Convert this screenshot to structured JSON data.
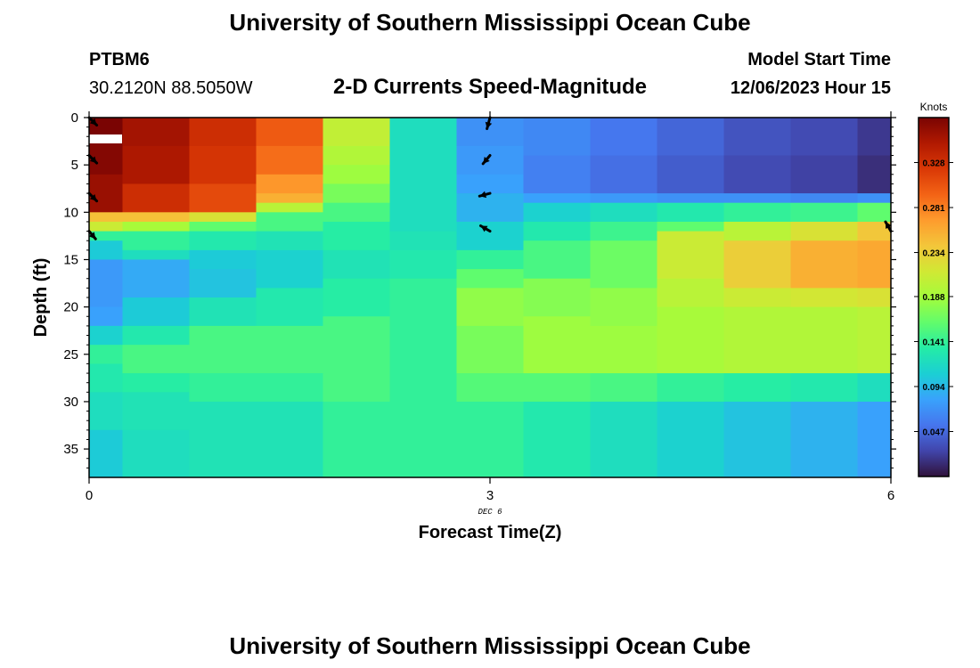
{
  "header": {
    "title": "University of Southern Mississippi Ocean Cube",
    "station": "PTBM6",
    "coords": "30.2120N  88.5050W",
    "subtitle": "2-D Currents Speed-Magnitude",
    "model_label": "Model Start Time",
    "model_time": "12/06/2023 Hour 15"
  },
  "footer": {
    "title": "University of Southern Mississippi Ocean Cube"
  },
  "chart_data": {
    "type": "heatmap",
    "title": "2-D Currents Speed-Magnitude",
    "xlabel": "Forecast Time(Z)",
    "ylabel": "Depth (ft)",
    "x_ticks": [
      "0",
      "3",
      "6"
    ],
    "x_tick_values": [
      0,
      3,
      6
    ],
    "date_label": "DEC 6",
    "y_ticks": [
      "0",
      "5",
      "10",
      "15",
      "20",
      "25",
      "30",
      "35"
    ],
    "y_tick_values": [
      0,
      5,
      10,
      15,
      20,
      25,
      30,
      35
    ],
    "xlim": [
      0,
      6
    ],
    "ylim": [
      0,
      38
    ],
    "colorbar": {
      "label": "Knots",
      "ticks": [
        "0.328",
        "0.281",
        "0.234",
        "0.188",
        "0.141",
        "0.094",
        "0.047"
      ],
      "tick_values": [
        0.328,
        0.281,
        0.234,
        0.188,
        0.141,
        0.094,
        0.047
      ],
      "range": [
        0.0,
        0.375
      ],
      "colors": [
        "#30123b",
        "#4145ab",
        "#4675ed",
        "#39a2fc",
        "#1bcfd4",
        "#24eca6",
        "#61fc6c",
        "#a4fc3b",
        "#d1e834",
        "#f3c63a",
        "#fe9b2d",
        "#f36315",
        "#d93806",
        "#b11901",
        "#7a0403"
      ]
    },
    "columns": [
      {
        "t0": 0.0,
        "t1": 0.25,
        "segments": [
          [
            0,
            2,
            0.375
          ],
          [
            2,
            6,
            0.37
          ],
          [
            6,
            10,
            0.36
          ],
          [
            10,
            11,
            0.245
          ],
          [
            11,
            12,
            0.21
          ],
          [
            12,
            13,
            0.14
          ],
          [
            13,
            15,
            0.105
          ],
          [
            15,
            20,
            0.075
          ],
          [
            20,
            22,
            0.08
          ],
          [
            22,
            24,
            0.11
          ],
          [
            24,
            26,
            0.14
          ],
          [
            26,
            29,
            0.13
          ],
          [
            29,
            33,
            0.12
          ],
          [
            33,
            38,
            0.105
          ]
        ]
      },
      {
        "t0": 0.25,
        "t1": 0.75,
        "segments": [
          [
            0,
            3,
            0.355
          ],
          [
            3,
            7,
            0.35
          ],
          [
            7,
            10,
            0.33
          ],
          [
            10,
            11,
            0.245
          ],
          [
            11,
            12,
            0.19
          ],
          [
            12,
            14,
            0.14
          ],
          [
            14,
            15,
            0.12
          ],
          [
            15,
            19,
            0.085
          ],
          [
            19,
            22,
            0.105
          ],
          [
            22,
            24,
            0.13
          ],
          [
            24,
            27,
            0.15
          ],
          [
            27,
            29,
            0.135
          ],
          [
            29,
            33,
            0.125
          ],
          [
            33,
            38,
            0.12
          ]
        ]
      },
      {
        "t0": 0.75,
        "t1": 1.25,
        "segments": [
          [
            0,
            3,
            0.33
          ],
          [
            3,
            7,
            0.325
          ],
          [
            7,
            10,
            0.31
          ],
          [
            10,
            11,
            0.22
          ],
          [
            11,
            12,
            0.16
          ],
          [
            12,
            14,
            0.13
          ],
          [
            14,
            16,
            0.105
          ],
          [
            16,
            19,
            0.1
          ],
          [
            19,
            22,
            0.125
          ],
          [
            22,
            27,
            0.15
          ],
          [
            27,
            30,
            0.14
          ],
          [
            30,
            38,
            0.125
          ]
        ]
      },
      {
        "t0": 1.25,
        "t1": 1.75,
        "segments": [
          [
            0,
            3,
            0.3
          ],
          [
            3,
            6,
            0.29
          ],
          [
            6,
            8,
            0.27
          ],
          [
            8,
            9,
            0.255
          ],
          [
            9,
            10,
            0.2
          ],
          [
            10,
            12,
            0.15
          ],
          [
            12,
            14,
            0.125
          ],
          [
            14,
            18,
            0.11
          ],
          [
            18,
            22,
            0.13
          ],
          [
            22,
            27,
            0.15
          ],
          [
            27,
            30,
            0.14
          ],
          [
            30,
            38,
            0.125
          ]
        ]
      },
      {
        "t0": 1.75,
        "t1": 2.25,
        "segments": [
          [
            0,
            3,
            0.205
          ],
          [
            3,
            5,
            0.195
          ],
          [
            5,
            7,
            0.185
          ],
          [
            7,
            9,
            0.17
          ],
          [
            9,
            11,
            0.15
          ],
          [
            11,
            14,
            0.135
          ],
          [
            14,
            17,
            0.125
          ],
          [
            17,
            21,
            0.135
          ],
          [
            21,
            30,
            0.15
          ],
          [
            30,
            38,
            0.14
          ]
        ]
      },
      {
        "t0": 2.25,
        "t1": 2.75,
        "segments": [
          [
            0,
            12,
            0.12
          ],
          [
            12,
            14,
            0.125
          ],
          [
            14,
            17,
            0.13
          ],
          [
            17,
            38,
            0.14
          ]
        ]
      },
      {
        "t0": 2.75,
        "t1": 3.25,
        "segments": [
          [
            0,
            3,
            0.07
          ],
          [
            3,
            6,
            0.075
          ],
          [
            6,
            8,
            0.08
          ],
          [
            8,
            11,
            0.09
          ],
          [
            11,
            14,
            0.11
          ],
          [
            14,
            16,
            0.14
          ],
          [
            16,
            18,
            0.16
          ],
          [
            18,
            22,
            0.18
          ],
          [
            22,
            27,
            0.17
          ],
          [
            27,
            30,
            0.155
          ],
          [
            30,
            38,
            0.14
          ]
        ]
      },
      {
        "t0": 3.25,
        "t1": 3.75,
        "segments": [
          [
            0,
            4,
            0.065
          ],
          [
            4,
            8,
            0.06
          ],
          [
            8,
            9,
            0.08
          ],
          [
            9,
            11,
            0.11
          ],
          [
            11,
            13,
            0.13
          ],
          [
            13,
            17,
            0.15
          ],
          [
            17,
            21,
            0.175
          ],
          [
            21,
            27,
            0.185
          ],
          [
            27,
            30,
            0.155
          ],
          [
            30,
            38,
            0.13
          ]
        ]
      },
      {
        "t0": 3.75,
        "t1": 4.25,
        "segments": [
          [
            0,
            4,
            0.055
          ],
          [
            4,
            8,
            0.05
          ],
          [
            8,
            9,
            0.075
          ],
          [
            9,
            11,
            0.12
          ],
          [
            11,
            13,
            0.145
          ],
          [
            13,
            18,
            0.165
          ],
          [
            18,
            22,
            0.18
          ],
          [
            22,
            27,
            0.185
          ],
          [
            27,
            30,
            0.15
          ],
          [
            30,
            38,
            0.12
          ]
        ]
      },
      {
        "t0": 4.25,
        "t1": 4.75,
        "segments": [
          [
            0,
            4,
            0.045
          ],
          [
            4,
            8,
            0.04
          ],
          [
            8,
            9,
            0.07
          ],
          [
            9,
            11,
            0.13
          ],
          [
            11,
            12,
            0.16
          ],
          [
            12,
            17,
            0.21
          ],
          [
            17,
            20,
            0.2
          ],
          [
            20,
            27,
            0.19
          ],
          [
            27,
            30,
            0.14
          ],
          [
            30,
            38,
            0.11
          ]
        ]
      },
      {
        "t0": 4.75,
        "t1": 5.25,
        "segments": [
          [
            0,
            4,
            0.035
          ],
          [
            4,
            8,
            0.03
          ],
          [
            8,
            9,
            0.07
          ],
          [
            9,
            11,
            0.14
          ],
          [
            11,
            13,
            0.2
          ],
          [
            13,
            18,
            0.235
          ],
          [
            18,
            20,
            0.21
          ],
          [
            20,
            27,
            0.195
          ],
          [
            27,
            30,
            0.135
          ],
          [
            30,
            38,
            0.1
          ]
        ]
      },
      {
        "t0": 5.25,
        "t1": 5.75,
        "segments": [
          [
            0,
            4,
            0.03
          ],
          [
            4,
            8,
            0.025
          ],
          [
            8,
            9,
            0.065
          ],
          [
            9,
            11,
            0.145
          ],
          [
            11,
            13,
            0.22
          ],
          [
            13,
            18,
            0.255
          ],
          [
            18,
            20,
            0.215
          ],
          [
            20,
            27,
            0.195
          ],
          [
            27,
            30,
            0.13
          ],
          [
            30,
            38,
            0.09
          ]
        ]
      },
      {
        "t0": 5.75,
        "t1": 6.0,
        "segments": [
          [
            0,
            4,
            0.02
          ],
          [
            4,
            8,
            0.015
          ],
          [
            8,
            9,
            0.07
          ],
          [
            9,
            11,
            0.16
          ],
          [
            11,
            13,
            0.24
          ],
          [
            13,
            18,
            0.26
          ],
          [
            18,
            20,
            0.22
          ],
          [
            20,
            27,
            0.2
          ],
          [
            27,
            30,
            0.12
          ],
          [
            30,
            38,
            0.08
          ]
        ]
      }
    ],
    "arrows": [
      {
        "t": 0.0,
        "depth": 0.0,
        "dir_deg": 135,
        "length": 0.3
      },
      {
        "t": 0.0,
        "depth": 4.0,
        "dir_deg": 135,
        "length": 0.3
      },
      {
        "t": 0.0,
        "depth": 8.0,
        "dir_deg": 135,
        "length": 0.3
      },
      {
        "t": 0.0,
        "depth": 12.0,
        "dir_deg": 140,
        "length": 0.28
      },
      {
        "t": 3.0,
        "depth": 0.0,
        "dir_deg": 195,
        "length": 0.32
      },
      {
        "t": 3.0,
        "depth": 4.0,
        "dir_deg": 220,
        "length": 0.3
      },
      {
        "t": 3.0,
        "depth": 8.0,
        "dir_deg": 255,
        "length": 0.3
      },
      {
        "t": 3.0,
        "depth": 12.0,
        "dir_deg": 300,
        "length": 0.3
      },
      {
        "t": 6.0,
        "depth": 12.0,
        "dir_deg": 330,
        "length": 0.3
      }
    ]
  }
}
